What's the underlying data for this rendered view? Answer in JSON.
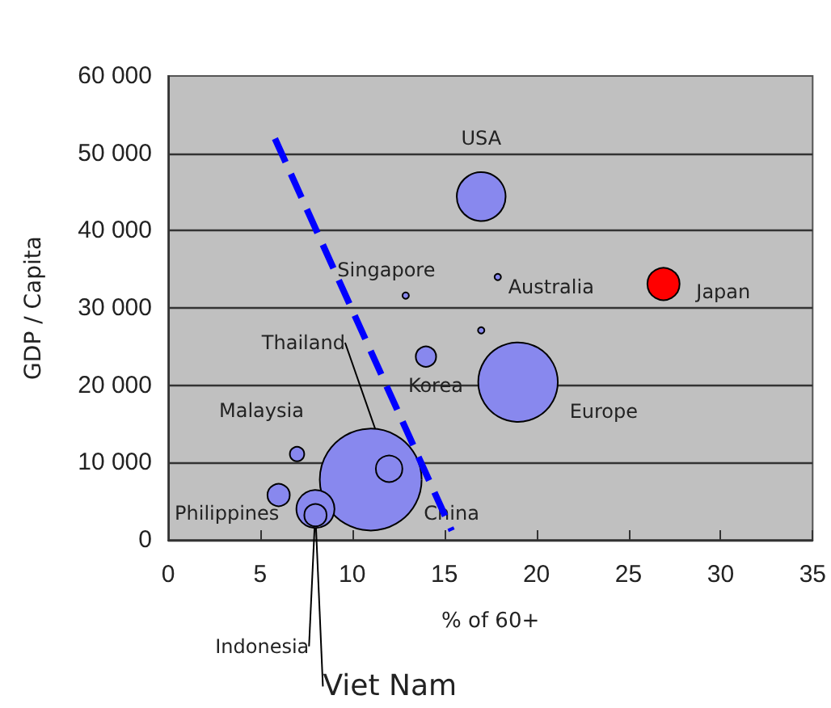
{
  "chart_data": {
    "type": "bubble",
    "xlabel": "% of 60+",
    "ylabel": "GDP / Capita",
    "xlim": [
      0,
      35
    ],
    "xticks": [
      0,
      5,
      10,
      15,
      20,
      25,
      30,
      35
    ],
    "ylim": [
      0,
      60000
    ],
    "yticks": [
      {
        "value": 0,
        "label": "0"
      },
      {
        "value": 10000,
        "label": "10 000"
      },
      {
        "value": 20000,
        "label": "20 000"
      },
      {
        "value": 30000,
        "label": "30 000"
      },
      {
        "value": 40000,
        "label": "40 000"
      },
      {
        "value": 50000,
        "label": "50 000"
      },
      {
        "value": 60000,
        "label": "60 000"
      }
    ],
    "grid": "y",
    "legend": false,
    "series": [
      {
        "name": "USA",
        "color": "#8888ee",
        "x": [
          17.0
        ],
        "values": [
          44400
        ],
        "sizes": [
          0.23
        ]
      },
      {
        "name": "China",
        "color": "#8888ee",
        "x": [
          11.0
        ],
        "values": [
          7800
        ],
        "sizes": [
          1
        ]
      },
      {
        "name": "Europe",
        "color": "#8888ee",
        "x": [
          19.0
        ],
        "values": [
          20400
        ],
        "sizes": [
          0.61
        ]
      },
      {
        "name": "Japan",
        "color": "#ff0000",
        "x": [
          26.9
        ],
        "values": [
          33100
        ],
        "sizes": [
          0.1
        ]
      },
      {
        "name": "Australia",
        "color": "#8888ee",
        "x": [
          17.9
        ],
        "values": [
          34000
        ],
        "sizes": [
          0.004
        ]
      },
      {
        "name": "Singapore",
        "color": "#8888ee",
        "x": [
          12.9
        ],
        "values": [
          31600
        ],
        "sizes": [
          0.004
        ]
      },
      {
        "name": "Korea",
        "color": "#8888ee",
        "x": [
          14.0
        ],
        "values": [
          23700
        ],
        "sizes": [
          0.04
        ]
      },
      {
        "name": "Thailand",
        "color": "#8888ee",
        "x": [
          12.0
        ],
        "values": [
          9200
        ],
        "sizes": [
          0.068
        ]
      },
      {
        "name": "Malaysia",
        "color": "#8888ee",
        "x": [
          7.0
        ],
        "values": [
          11100
        ],
        "sizes": [
          0.02
        ]
      },
      {
        "name": "Philippines",
        "color": "#8888ee",
        "x": [
          6.0
        ],
        "values": [
          5800
        ],
        "sizes": [
          0.048
        ]
      },
      {
        "name": "Indonesia",
        "color": "#8888ee",
        "x": [
          8.0
        ],
        "values": [
          4000
        ],
        "sizes": [
          0.14
        ]
      },
      {
        "name": "Viet Nam",
        "color": "#8888ee",
        "x": [
          8.0
        ],
        "values": [
          3200
        ],
        "sizes": [
          0.048
        ]
      },
      {
        "color": "#8888ee",
        "x": [
          17.0
        ],
        "values": [
          27100
        ],
        "sizes": [
          0.004
        ]
      },
      {
        "type": "line",
        "color": "#0000ff",
        "line_style": "dashed",
        "marker": "none",
        "x": [
          5.8,
          15.4
        ],
        "values": [
          51900,
          1200
        ]
      }
    ]
  }
}
